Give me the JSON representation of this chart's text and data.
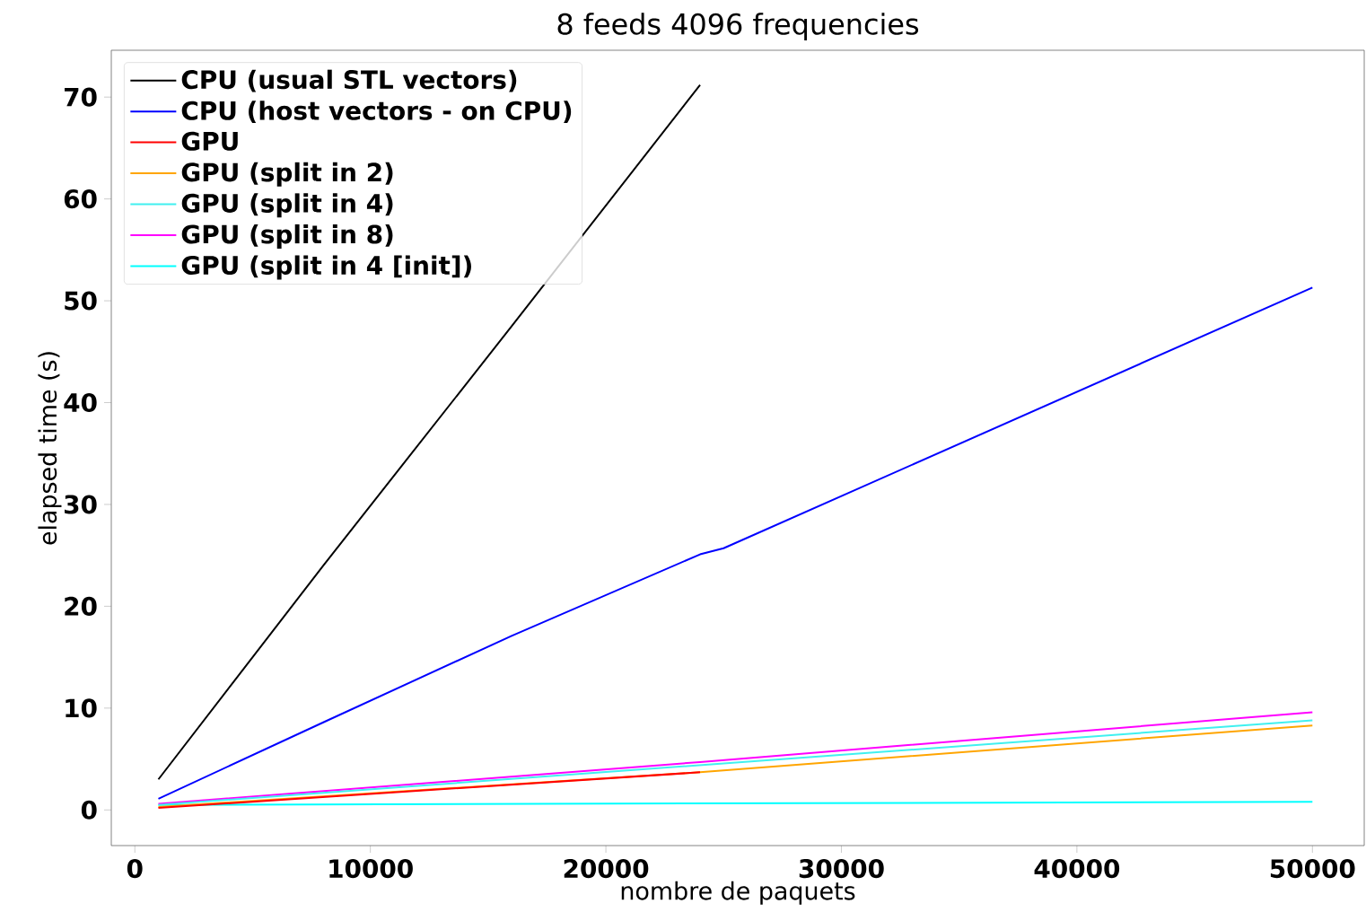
{
  "chart_data": {
    "type": "line",
    "title": "8 feeds 4096 frequencies",
    "xlabel": "nombre de paquets",
    "ylabel": "elapsed time (s)",
    "xlim": [
      -1000,
      52200
    ],
    "ylim": [
      -3.5,
      74.6
    ],
    "xticks": [
      0,
      10000,
      20000,
      30000,
      40000,
      50000
    ],
    "yticks": [
      0,
      10,
      20,
      30,
      40,
      50,
      60,
      70
    ],
    "legend": "top left",
    "grid": false,
    "marker": "none",
    "line_style": "solid",
    "series": [
      {
        "name": "CPU (usual STL vectors)",
        "color": "#000000",
        "x": [
          1000,
          8000,
          16000,
          24000
        ],
        "values": [
          3.0,
          24.0,
          47.5,
          71.2
        ]
      },
      {
        "name": "CPU (host vectors - on CPU)",
        "color": "#0000ff",
        "x": [
          1000,
          8000,
          16000,
          24000,
          25000,
          50000
        ],
        "values": [
          1.1,
          8.6,
          17.1,
          25.1,
          25.7,
          51.3
        ]
      },
      {
        "name": "GPU",
        "color": "#ff0000",
        "x": [
          1000,
          24000
        ],
        "values": [
          0.2,
          3.7
        ]
      },
      {
        "name": "GPU (split in 2)",
        "color": "#ffa500",
        "x": [
          1000,
          24000,
          50000
        ],
        "values": [
          0.3,
          3.7,
          8.3
        ]
      },
      {
        "name": "GPU (split in 4)",
        "color": "#40f0f0",
        "x": [
          1000,
          50000
        ],
        "values": [
          0.5,
          8.8
        ]
      },
      {
        "name": "GPU (split in 8)",
        "color": "#ff00ff",
        "x": [
          1000,
          24000,
          50000
        ],
        "values": [
          0.6,
          4.7,
          9.6
        ]
      },
      {
        "name": "GPU (split in 4 [init])",
        "color": "#00ffff",
        "x": [
          1000,
          50000
        ],
        "values": [
          0.5,
          0.8
        ]
      }
    ]
  }
}
